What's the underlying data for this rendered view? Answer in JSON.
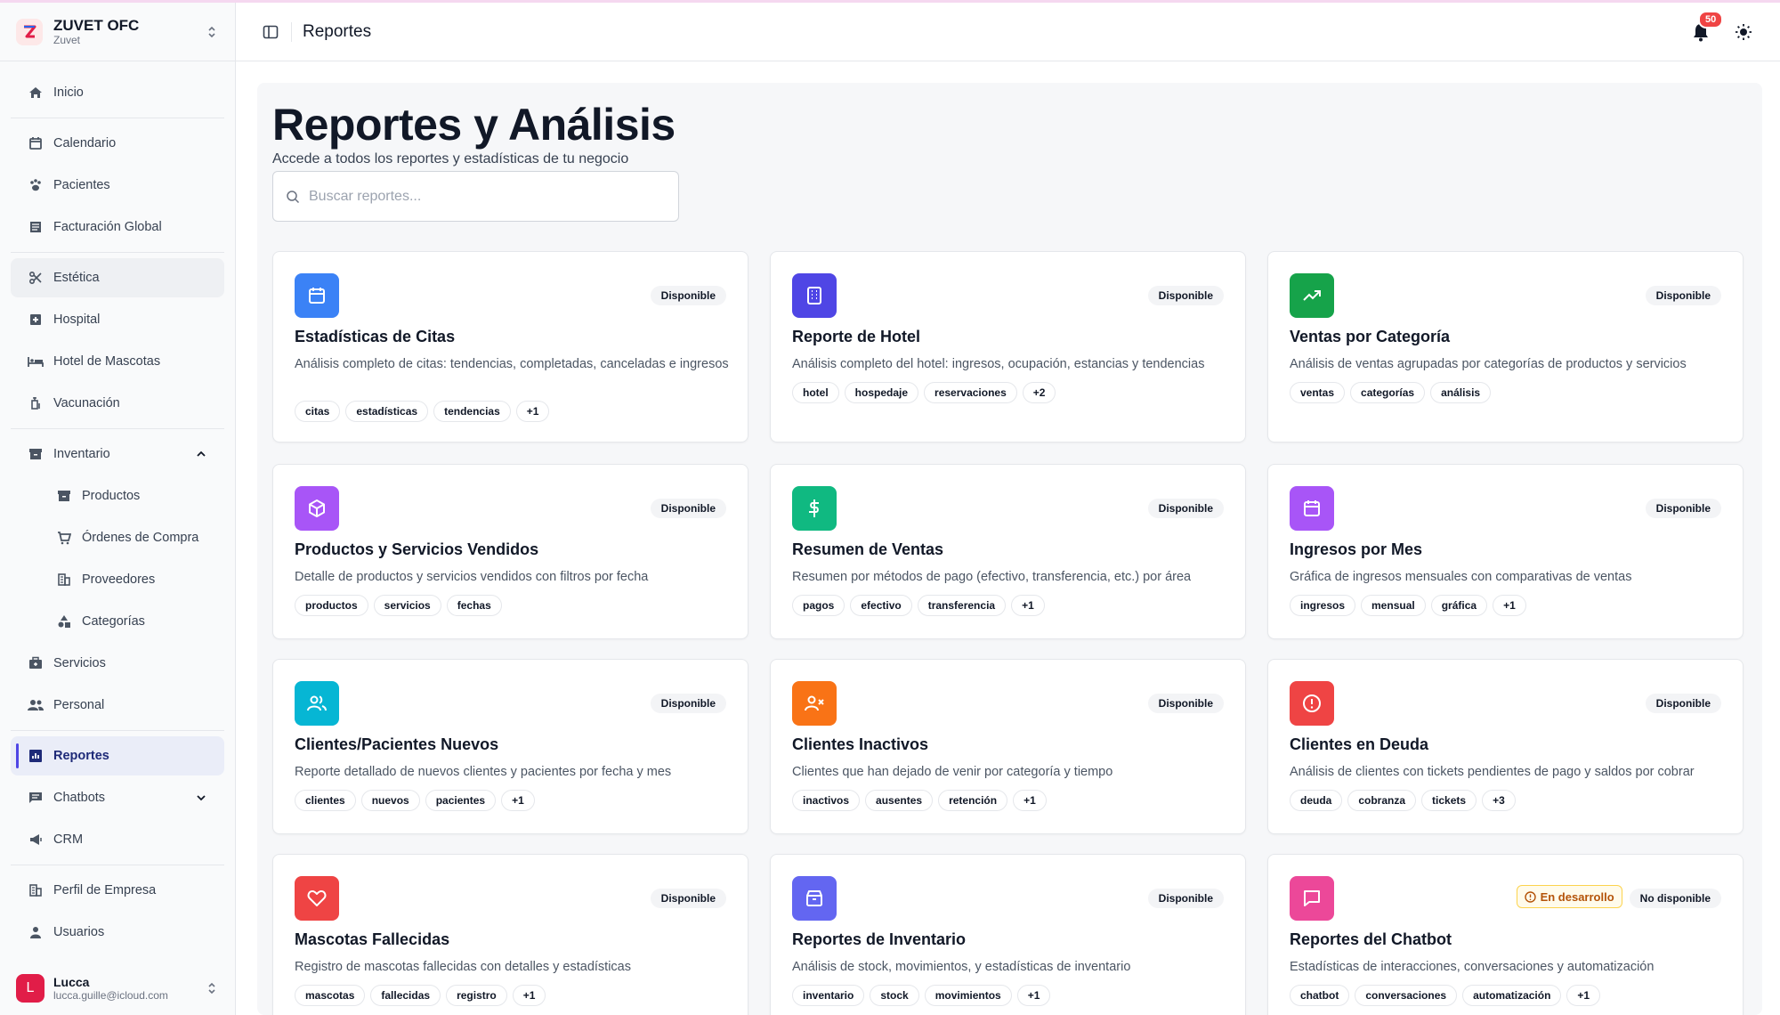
{
  "brand": {
    "name": "ZUVET OFC",
    "sub": "Zuvet"
  },
  "sidebar": {
    "items": [
      {
        "label": "Inicio"
      },
      {
        "label": "Calendario"
      },
      {
        "label": "Pacientes"
      },
      {
        "label": "Facturación Global"
      },
      {
        "label": "Estética"
      },
      {
        "label": "Hospital"
      },
      {
        "label": "Hotel de Mascotas"
      },
      {
        "label": "Vacunación"
      },
      {
        "label": "Inventario"
      },
      {
        "label": "Productos"
      },
      {
        "label": "Órdenes de Compra"
      },
      {
        "label": "Proveedores"
      },
      {
        "label": "Categorías"
      },
      {
        "label": "Servicios"
      },
      {
        "label": "Personal"
      },
      {
        "label": "Reportes"
      },
      {
        "label": "Chatbots"
      },
      {
        "label": "CRM"
      },
      {
        "label": "Perfil de Empresa"
      },
      {
        "label": "Usuarios"
      }
    ]
  },
  "user": {
    "initial": "L",
    "name": "Lucca",
    "email": "lucca.guille@icloud.com"
  },
  "header": {
    "title": "Reportes",
    "notifications": "50"
  },
  "page": {
    "title": "Reportes y Análisis",
    "subtitle": "Accede a todos los reportes y estadísticas de tu negocio",
    "search_placeholder": "Buscar reportes..."
  },
  "colors": {
    "blue": "#3b82f6",
    "indigo": "#4f46e5",
    "green": "#16a34a",
    "purple": "#a855f7",
    "emerald": "#10b981",
    "cyan": "#06b6d4",
    "orange": "#f97316",
    "red": "#ef4444",
    "pink": "#ec4899"
  },
  "cards": [
    {
      "title": "Estadísticas de Citas",
      "desc": "Análisis completo de citas: tendencias, completadas, canceladas e ingresos",
      "status": "Disponible",
      "icon": "calendar-icon",
      "tags": [
        "citas",
        "estadísticas",
        "tendencias",
        "+1"
      ]
    },
    {
      "title": "Reporte de Hotel",
      "desc": "Análisis completo del hotel: ingresos, ocupación, estancias y tendencias",
      "status": "Disponible",
      "icon": "building-icon",
      "tags": [
        "hotel",
        "hospedaje",
        "reservaciones",
        "+2"
      ]
    },
    {
      "title": "Ventas por Categoría",
      "desc": "Análisis de ventas agrupadas por categorías de productos y servicios",
      "status": "Disponible",
      "icon": "trending-up-icon",
      "tags": [
        "ventas",
        "categorías",
        "análisis"
      ]
    },
    {
      "title": "Productos y Servicios Vendidos",
      "desc": "Detalle de productos y servicios vendidos con filtros por fecha",
      "status": "Disponible",
      "icon": "package-icon",
      "tags": [
        "productos",
        "servicios",
        "fechas"
      ]
    },
    {
      "title": "Resumen de Ventas",
      "desc": "Resumen por métodos de pago (efectivo, transferencia, etc.) por área",
      "status": "Disponible",
      "icon": "dollar-icon",
      "tags": [
        "pagos",
        "efectivo",
        "transferencia",
        "+1"
      ]
    },
    {
      "title": "Ingresos por Mes",
      "desc": "Gráfica de ingresos mensuales con comparativas de ventas",
      "status": "Disponible",
      "icon": "calendar-icon",
      "tags": [
        "ingresos",
        "mensual",
        "gráfica",
        "+1"
      ]
    },
    {
      "title": "Clientes/Pacientes Nuevos",
      "desc": "Reporte detallado de nuevos clientes y pacientes por fecha y mes",
      "status": "Disponible",
      "icon": "users-icon",
      "tags": [
        "clientes",
        "nuevos",
        "pacientes",
        "+1"
      ]
    },
    {
      "title": "Clientes Inactivos",
      "desc": "Clientes que han dejado de venir por categoría y tiempo",
      "status": "Disponible",
      "icon": "user-x-icon",
      "tags": [
        "inactivos",
        "ausentes",
        "retención",
        "+1"
      ]
    },
    {
      "title": "Clientes en Deuda",
      "desc": "Análisis de clientes con tickets pendientes de pago y saldos por cobrar",
      "status": "Disponible",
      "icon": "alert-circle-icon",
      "tags": [
        "deuda",
        "cobranza",
        "tickets",
        "+3"
      ]
    },
    {
      "title": "Mascotas Fallecidas",
      "desc": "Registro de mascotas fallecidas con detalles y estadísticas",
      "status": "Disponible",
      "icon": "heart-icon",
      "tags": [
        "mascotas",
        "fallecidas",
        "registro",
        "+1"
      ]
    },
    {
      "title": "Reportes de Inventario",
      "desc": "Análisis de stock, movimientos, y estadísticas de inventario",
      "status": "Disponible",
      "icon": "box-icon",
      "tags": [
        "inventario",
        "stock",
        "movimientos",
        "+1"
      ]
    },
    {
      "title": "Reportes del Chatbot",
      "desc": "Estadísticas de interacciones, conversaciones y automatización",
      "status": "No disponible",
      "dev": "En desarrollo",
      "icon": "message-square-icon",
      "tags": [
        "chatbot",
        "conversaciones",
        "automatización",
        "+1"
      ]
    }
  ]
}
